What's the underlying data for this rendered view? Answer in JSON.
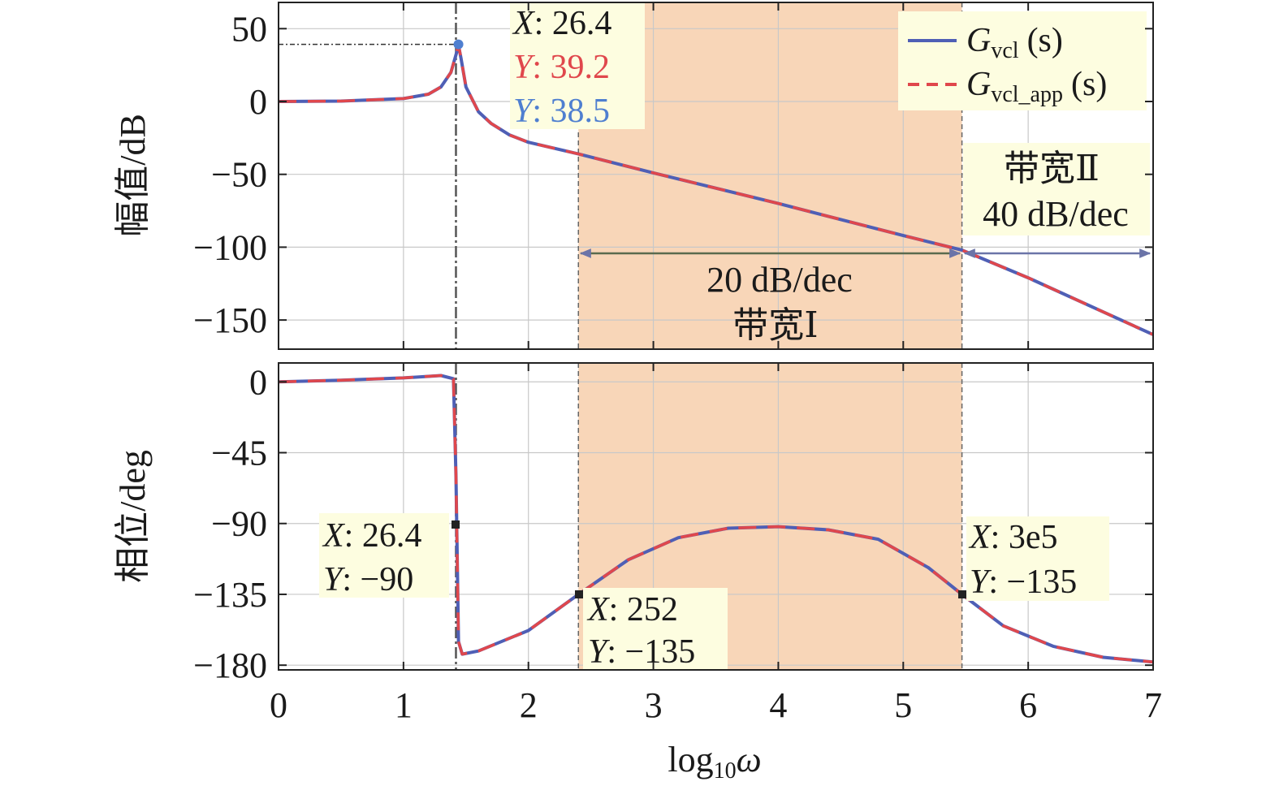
{
  "chart_data": [
    {
      "type": "line",
      "ylabel": "幅值/dB",
      "xlim": [
        0,
        7
      ],
      "ylim": [
        -170,
        68
      ],
      "x_ticks": [
        "0",
        "1",
        "2",
        "3",
        "4",
        "5",
        "6",
        "7"
      ],
      "y_ticks": [
        {
          "value": 50,
          "label": "50"
        },
        {
          "value": 0,
          "label": "0"
        },
        {
          "value": -50,
          "label": "−50"
        },
        {
          "value": -100,
          "label": "−100"
        },
        {
          "value": -150,
          "label": "−150"
        }
      ],
      "grid": true,
      "legend_position": "top-right",
      "series": [
        {
          "name_main": "G",
          "name_sub": "vcl",
          "name_suffix": "(s)",
          "color": "#4f5fb5",
          "style": "solid",
          "x": [
            0,
            0.5,
            1.0,
            1.2,
            1.3,
            1.38,
            1.42,
            1.44,
            1.46,
            1.5,
            1.6,
            1.7,
            1.85,
            2.0,
            2.4,
            3.0,
            4.0,
            5.0,
            5.47,
            6.0,
            7.0
          ],
          "y": [
            0,
            0.3,
            2,
            5,
            10,
            20,
            32,
            38.5,
            30,
            10,
            -7,
            -15,
            -23,
            -28,
            -36,
            -49,
            -70,
            -92,
            -102,
            -121,
            -160
          ]
        },
        {
          "name_main": "G",
          "name_sub": "vcl_app",
          "name_suffix": "(s)",
          "color": "#e0474c",
          "style": "dashed",
          "x": [
            0,
            0.5,
            1.0,
            1.2,
            1.3,
            1.38,
            1.42,
            1.44,
            1.46,
            1.5,
            1.6,
            1.7,
            1.85,
            2.0,
            2.4,
            3.0,
            4.0,
            5.0,
            5.47,
            6.0,
            7.0
          ],
          "y": [
            0,
            0.3,
            2,
            5,
            10,
            20,
            32,
            39.2,
            30,
            10,
            -7,
            -15,
            -23,
            -28,
            -36,
            -49,
            -70,
            -92,
            -102,
            -121,
            -160
          ]
        }
      ],
      "shaded_band": {
        "x_from": 2.4,
        "x_to": 5.47,
        "color": "#f8d6b8"
      },
      "vertical_lines": [
        1.42,
        2.4,
        5.47
      ],
      "datatip": {
        "x_line": {
          "key": "X",
          "value": "26.4"
        },
        "y_line_1": {
          "key": "Y",
          "value": "39.2",
          "color": "#e0474c"
        },
        "y_line_2": {
          "key": "Y",
          "value": "38.5",
          "color": "#4f5fb5"
        }
      },
      "annotations": [
        {
          "text": "带宽Ⅱ"
        },
        {
          "text": "40 dB/dec"
        },
        {
          "text": "20 dB/dec"
        },
        {
          "text": "带宽Ⅰ"
        }
      ]
    },
    {
      "type": "line",
      "xlabel_main": "log",
      "xlabel_sub": "10",
      "xlabel_var": "ω",
      "ylabel": "相位/deg",
      "xlim": [
        0,
        7
      ],
      "ylim": [
        -183,
        12
      ],
      "x_ticks": [
        "0",
        "1",
        "2",
        "3",
        "4",
        "5",
        "6",
        "7"
      ],
      "y_ticks": [
        {
          "value": 0,
          "label": "0"
        },
        {
          "value": -45,
          "label": "−45"
        },
        {
          "value": -90,
          "label": "−90"
        },
        {
          "value": -135,
          "label": "−135"
        },
        {
          "value": -180,
          "label": "−180"
        }
      ],
      "grid": true,
      "series": [
        {
          "name": "Gvcl(s)",
          "color": "#4f5fb5",
          "style": "solid",
          "x": [
            0,
            0.5,
            1.0,
            1.3,
            1.4,
            1.42,
            1.43,
            1.44,
            1.47,
            1.6,
            2.0,
            2.4,
            2.8,
            3.2,
            3.6,
            4.0,
            4.4,
            4.8,
            5.2,
            5.47,
            5.8,
            6.2,
            6.6,
            7.0
          ],
          "y": [
            0,
            1,
            2.5,
            4,
            2,
            -60,
            -110,
            -165,
            -173,
            -171,
            -158,
            -135,
            -113,
            -99,
            -93,
            -92,
            -94,
            -100,
            -118,
            -135,
            -155,
            -168,
            -175,
            -178
          ]
        },
        {
          "name": "Gvcl_app(s)",
          "color": "#e0474c",
          "style": "dashed",
          "x": [
            0,
            0.5,
            1.0,
            1.3,
            1.4,
            1.42,
            1.43,
            1.44,
            1.47,
            1.6,
            2.0,
            2.4,
            2.8,
            3.2,
            3.6,
            4.0,
            4.4,
            4.8,
            5.2,
            5.47,
            5.8,
            6.2,
            6.6,
            7.0
          ],
          "y": [
            0,
            1,
            2.5,
            4,
            2,
            -60,
            -110,
            -165,
            -173,
            -171,
            -158,
            -135,
            -113,
            -99,
            -93,
            -92,
            -94,
            -100,
            -118,
            -135,
            -155,
            -168,
            -175,
            -178
          ]
        }
      ],
      "shaded_band": {
        "x_from": 2.4,
        "x_to": 5.47,
        "color": "#f8d6b8"
      },
      "vertical_lines": [
        1.42,
        2.4,
        5.47
      ],
      "datatips": [
        {
          "x_value": "26.4",
          "y_value": "−90"
        },
        {
          "x_value": "252",
          "y_value": "−135"
        },
        {
          "x_value": "3e5",
          "y_value": "−135"
        }
      ]
    }
  ]
}
